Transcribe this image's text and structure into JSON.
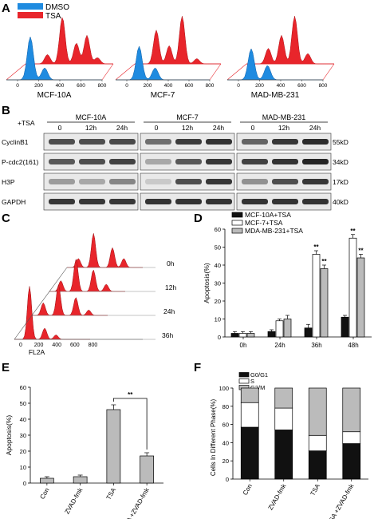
{
  "panels": {
    "a": {
      "letter": "A",
      "legend": [
        {
          "label": "DMSO",
          "color": "#1f8be0"
        },
        {
          "label": "TSA",
          "color": "#e8252b"
        }
      ],
      "histograms": [
        {
          "name": "MCF-10A",
          "ticks": [
            "0",
            "200",
            "400",
            "600",
            "800"
          ]
        },
        {
          "name": "MCF-7",
          "ticks": [
            "0",
            "200",
            "400",
            "600",
            "800"
          ]
        },
        {
          "name": "MAD-MB-231",
          "ticks": [
            "0",
            "200",
            "400",
            "600",
            "800"
          ]
        }
      ]
    },
    "b": {
      "letter": "B",
      "treatment_label": "+TSA",
      "cell_lines": [
        "MCF-10A",
        "MCF-7",
        "MAD-MB-231"
      ],
      "timepoints": [
        "0",
        "12h",
        "24h"
      ],
      "proteins": [
        {
          "name": "CyclinB1",
          "size": "55kD"
        },
        {
          "name": "P-cdc2(161)",
          "size": "34kD"
        },
        {
          "name": "H3P",
          "size": "17kD"
        },
        {
          "name": "GAPDH",
          "size": "40kD"
        }
      ]
    },
    "c": {
      "letter": "C",
      "x_ticks": [
        "0",
        "200",
        "400",
        "600",
        "800"
      ],
      "x_label": "FL2A",
      "time_labels": [
        "36h",
        "24h",
        "12h",
        "0h"
      ]
    },
    "d": {
      "letter": "D"
    },
    "e": {
      "letter": "E"
    },
    "f": {
      "letter": "F"
    }
  },
  "chart_data": [
    {
      "panel": "D",
      "type": "bar",
      "categories": [
        "0h",
        "24h",
        "36h",
        "48h"
      ],
      "series": [
        {
          "name": "MCF-10A+TSA",
          "color": "#111111",
          "values": [
            2,
            3,
            5,
            11
          ],
          "errors": [
            1,
            1,
            2,
            1
          ]
        },
        {
          "name": "MCF-7+TSA",
          "color": "#ffffff",
          "values": [
            2,
            9,
            46,
            55
          ],
          "errors": [
            1,
            1,
            2,
            2
          ]
        },
        {
          "name": "MDA-MB-231+TSA",
          "color": "#bbbbbb",
          "values": [
            2,
            10,
            38,
            44
          ],
          "errors": [
            1,
            2,
            2,
            2
          ]
        }
      ],
      "significance": [
        {
          "category": "36h",
          "series": 1,
          "label": "**"
        },
        {
          "category": "36h",
          "series": 2,
          "label": "**"
        },
        {
          "category": "48h",
          "series": 1,
          "label": "**"
        },
        {
          "category": "48h",
          "series": 2,
          "label": "**"
        }
      ],
      "ylabel": "Apoptosis(%)",
      "ylim": [
        0,
        60
      ],
      "yticks": [
        "0",
        "10",
        "20",
        "30",
        "40",
        "50",
        "60"
      ]
    },
    {
      "panel": "E",
      "type": "bar",
      "categories": [
        "Con",
        "ZVAD-fmk",
        "TSA",
        "TSA +ZVAD-fmk"
      ],
      "values": [
        3,
        4,
        46,
        17
      ],
      "errors": [
        1,
        1,
        3,
        2
      ],
      "color": "#bbbbbb",
      "significance_label": "**",
      "ylabel": "Apoptosis(%)",
      "ylim": [
        0,
        60
      ],
      "yticks": [
        "0",
        "10",
        "20",
        "30",
        "40",
        "50",
        "60"
      ]
    },
    {
      "panel": "F",
      "type": "bar",
      "stacked": true,
      "categories": [
        "Con",
        "ZVAD-fmk",
        "TSA",
        "TSA +ZVAD-fmk"
      ],
      "series": [
        {
          "name": "G0/G1",
          "color": "#111111",
          "values": [
            57,
            54,
            31,
            39
          ]
        },
        {
          "name": "S",
          "color": "#ffffff",
          "values": [
            27,
            24,
            17,
            13
          ]
        },
        {
          "name": "G2/M",
          "color": "#bbbbbb",
          "values": [
            16,
            22,
            52,
            48
          ]
        }
      ],
      "ylabel": "Cells In Different Phase(%)",
      "ylim": [
        0,
        100
      ],
      "yticks": [
        "0",
        "20",
        "40",
        "60",
        "80",
        "100"
      ]
    }
  ]
}
